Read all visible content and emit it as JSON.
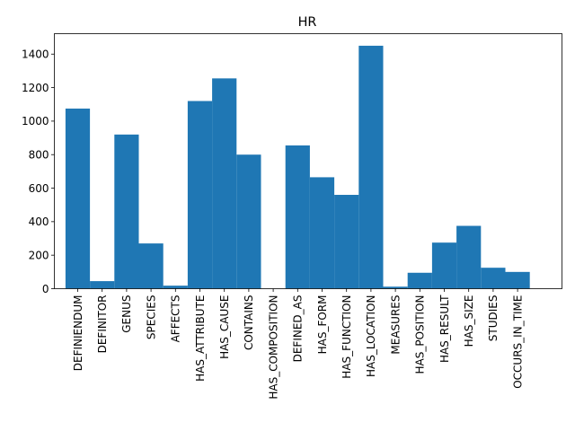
{
  "chart_data": {
    "type": "bar",
    "title": "HR",
    "xlabel": "",
    "ylabel": "",
    "categories": [
      "DEFINIENDUM",
      "DEFINITOR",
      "GENUS",
      "SPECIES",
      "AFFECTS",
      "HAS_ATTRIBUTE",
      "HAS_CAUSE",
      "CONTAINS",
      "HAS_COMPOSITION",
      "DEFINED_AS",
      "HAS_FORM",
      "HAS_FUNCTION",
      "HAS_LOCATION",
      "MEASURES",
      "HAS_POSITION",
      "HAS_RESULT",
      "HAS_SIZE",
      "STUDIES",
      "OCCURS_IN_TIME"
    ],
    "values": [
      1075,
      45,
      920,
      270,
      18,
      1120,
      1255,
      800,
      0,
      855,
      665,
      560,
      1450,
      12,
      95,
      275,
      375,
      125,
      100
    ],
    "ylim": [
      0,
      1522
    ],
    "yticks": [
      0,
      200,
      400,
      600,
      800,
      1000,
      1200,
      1400
    ],
    "bar_color": "#1f77b4",
    "grid": false,
    "legend": "none"
  }
}
